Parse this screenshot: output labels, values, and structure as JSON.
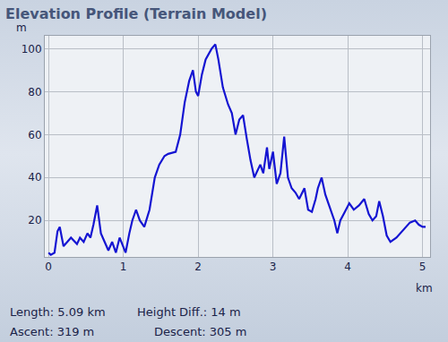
{
  "chart_data": {
    "type": "line",
    "title": "Elevation Profile (Terrain Model)",
    "x_label": "km",
    "y_label": "m",
    "color": "#1414d2",
    "grid": true,
    "xlim": [
      -0.05,
      5.1
    ],
    "xticks": [
      0,
      1,
      2,
      3,
      4,
      5
    ],
    "ylim": [
      3,
      106
    ],
    "yticks": [
      20,
      40,
      60,
      80,
      100
    ],
    "x": [
      0,
      0.03,
      0.08,
      0.12,
      0.15,
      0.2,
      0.25,
      0.3,
      0.38,
      0.42,
      0.47,
      0.52,
      0.56,
      0.6,
      0.65,
      0.7,
      0.75,
      0.8,
      0.85,
      0.9,
      0.95,
      1.0,
      1.03,
      1.08,
      1.12,
      1.17,
      1.22,
      1.28,
      1.35,
      1.42,
      1.48,
      1.55,
      1.6,
      1.7,
      1.76,
      1.82,
      1.88,
      1.93,
      1.97,
      2.0,
      2.05,
      2.1,
      2.18,
      2.23,
      2.27,
      2.33,
      2.4,
      2.45,
      2.5,
      2.55,
      2.6,
      2.65,
      2.7,
      2.75,
      2.8,
      2.83,
      2.87,
      2.92,
      2.95,
      3.0,
      3.05,
      3.1,
      3.15,
      3.2,
      3.25,
      3.3,
      3.35,
      3.42,
      3.47,
      3.52,
      3.57,
      3.6,
      3.65,
      3.7,
      3.75,
      3.82,
      3.86,
      3.9,
      3.96,
      4.02,
      4.08,
      4.15,
      4.22,
      4.28,
      4.33,
      4.38,
      4.42,
      4.47,
      4.52,
      4.57,
      4.65,
      4.75,
      4.83,
      4.9,
      4.95,
      5.0,
      5.04
    ],
    "values": [
      5,
      4,
      5,
      15,
      17,
      8,
      10,
      12,
      9,
      12,
      10,
      14,
      12,
      18,
      27,
      14,
      10,
      6,
      10,
      5,
      12,
      8,
      5,
      14,
      20,
      25,
      20,
      17,
      25,
      40,
      46,
      50,
      51,
      52,
      60,
      75,
      85,
      90,
      80,
      78,
      88,
      95,
      100,
      102,
      95,
      82,
      74,
      70,
      60,
      67,
      69,
      58,
      48,
      40,
      44,
      46,
      42,
      54,
      44,
      52,
      37,
      42,
      59,
      40,
      35,
      33,
      30,
      35,
      25,
      24,
      30,
      35,
      40,
      32,
      27,
      20,
      14,
      20,
      24,
      28,
      25,
      27,
      30,
      23,
      20,
      22,
      29,
      22,
      13,
      10,
      12,
      16,
      19,
      20,
      18,
      17,
      17
    ],
    "footer": [
      "Length: 5.09 km",
      "Height Diff.: 14 m",
      "Ascent: 319 m",
      "Descent: 305 m"
    ]
  }
}
